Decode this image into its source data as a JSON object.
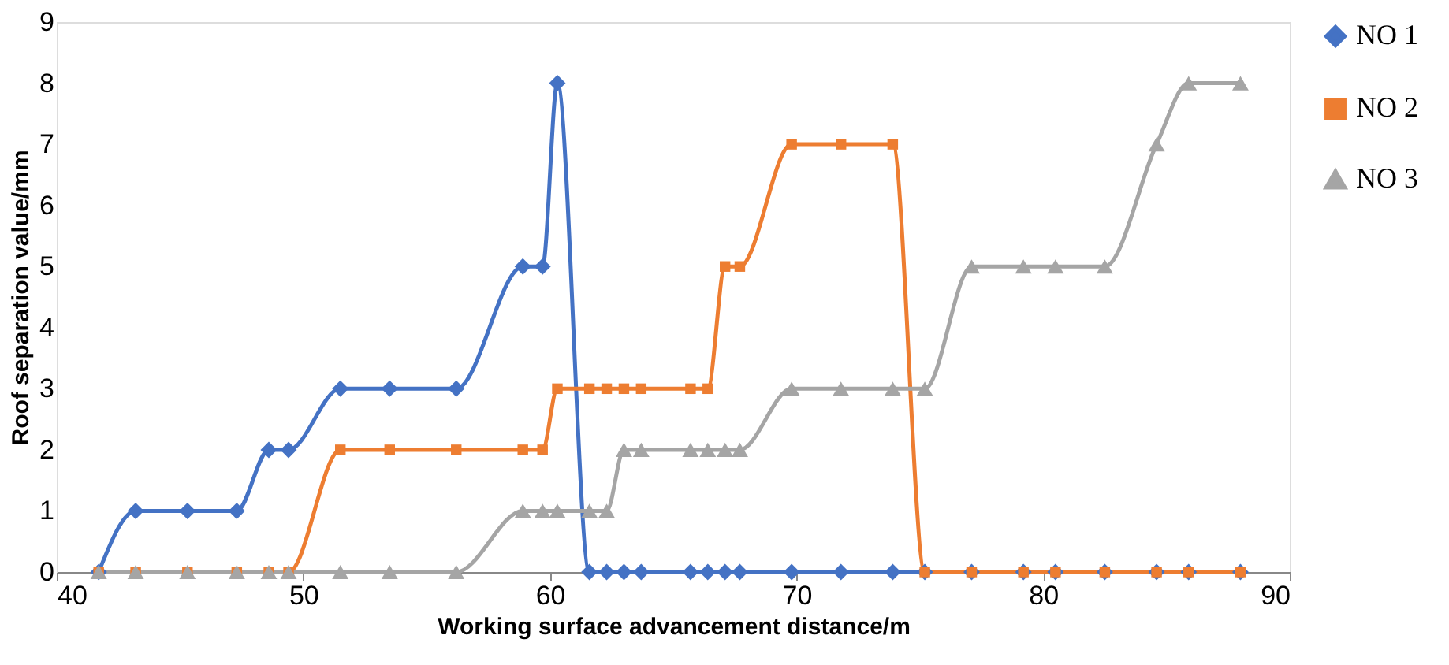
{
  "chart_data": {
    "type": "line",
    "xlabel": "Working surface advancement distance/m",
    "ylabel": "Roof separation value/mm",
    "x": [
      41.7,
      43.2,
      45.3,
      47.3,
      48.6,
      49.4,
      51.5,
      53.5,
      56.2,
      58.9,
      59.7,
      60.3,
      61.6,
      62.3,
      63.0,
      63.7,
      65.7,
      66.4,
      67.1,
      67.7,
      69.8,
      71.8,
      73.9,
      75.2,
      77.1,
      79.2,
      80.5,
      82.5,
      84.6,
      85.9,
      88.0
    ],
    "series": [
      {
        "name": "NO 1",
        "color": "#4472c4",
        "marker": "diamond",
        "values": [
          0,
          1,
          1,
          1,
          2,
          2,
          3,
          3,
          3,
          5,
          5,
          8,
          0,
          0,
          0,
          0,
          0,
          0,
          0,
          0,
          0,
          0,
          0,
          0,
          0,
          0,
          0,
          0,
          0,
          0,
          0
        ]
      },
      {
        "name": "NO 2",
        "color": "#ed7d31",
        "marker": "square",
        "values": [
          0,
          0,
          0,
          0,
          0,
          0,
          2,
          2,
          2,
          2,
          2,
          3,
          3,
          3,
          3,
          3,
          3,
          3,
          5,
          5,
          7,
          7,
          7,
          0,
          0,
          0,
          0,
          0,
          0,
          0,
          0
        ]
      },
      {
        "name": "NO 3",
        "color": "#a5a5a5",
        "marker": "triangle",
        "values": [
          0,
          0,
          0,
          0,
          0,
          0,
          0,
          0,
          0,
          1,
          1,
          1,
          1,
          1,
          2,
          2,
          2,
          2,
          2,
          2,
          3,
          3,
          3,
          3,
          5,
          5,
          5,
          5,
          7,
          8,
          8
        ]
      }
    ],
    "xlim": [
      40,
      90
    ],
    "xticks": [
      40,
      50,
      60,
      70,
      80,
      90
    ],
    "ylim": [
      0,
      9
    ],
    "yticks": [
      0,
      1,
      2,
      3,
      4,
      5,
      6,
      7,
      8,
      9
    ],
    "grid": false,
    "legend": "right",
    "line_style": "solid"
  }
}
